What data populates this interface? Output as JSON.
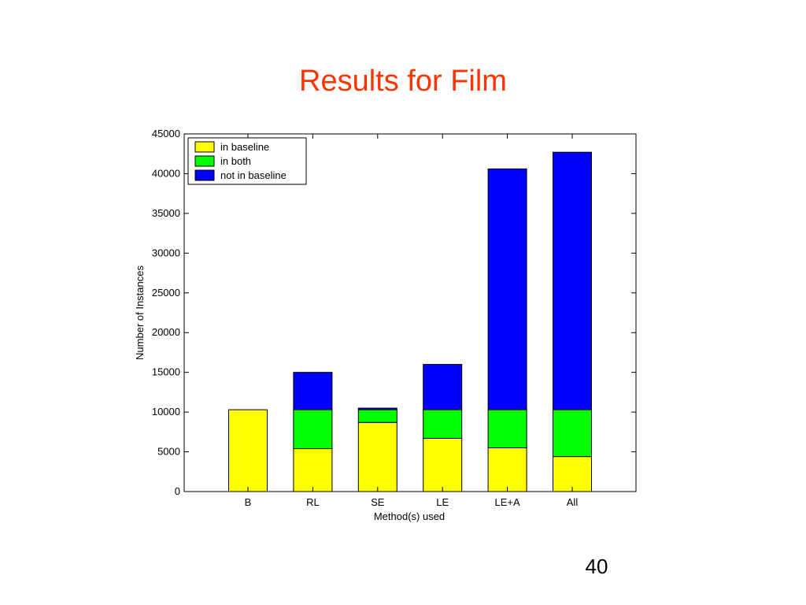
{
  "slide": {
    "title": "Results for Film",
    "page_number": "40"
  },
  "colors": {
    "title": "#ff3300",
    "in_baseline": "#ffff00",
    "in_both": "#00ff00",
    "not_in_baseline": "#0000ff"
  },
  "chart_data": {
    "type": "bar",
    "stacked": true,
    "title": "",
    "xlabel": "Method(s) used",
    "ylabel": "Number of Instances",
    "ylim": [
      0,
      45000
    ],
    "yticks": [
      0,
      5000,
      10000,
      15000,
      20000,
      25000,
      30000,
      35000,
      40000,
      45000
    ],
    "categories": [
      "B",
      "RL",
      "SE",
      "LE",
      "LE+A",
      "All"
    ],
    "series": [
      {
        "name": "in baseline",
        "color": "#ffff00",
        "values": [
          10300,
          5400,
          8700,
          6700,
          5500,
          4400
        ]
      },
      {
        "name": "in both",
        "color": "#00ff00",
        "values": [
          0,
          4900,
          1600,
          3600,
          4800,
          5900
        ]
      },
      {
        "name": "not in baseline",
        "color": "#0000ff",
        "values": [
          0,
          4700,
          200,
          5700,
          30300,
          32400
        ]
      }
    ],
    "legend_position": "top-left",
    "grid": false
  }
}
